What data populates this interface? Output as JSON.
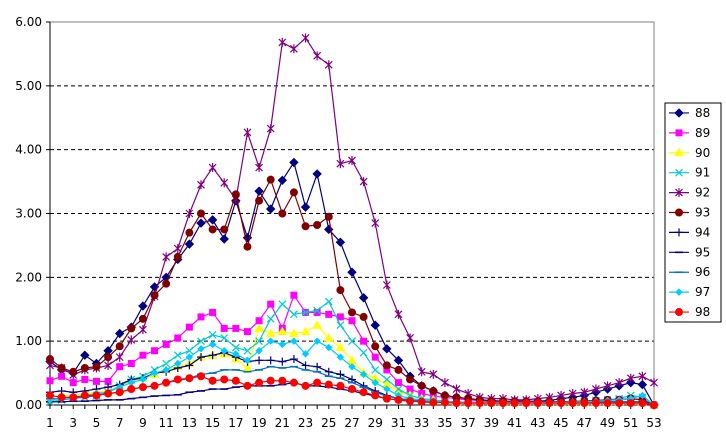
{
  "chart_data": {
    "type": "line",
    "title": "",
    "xlabel": "",
    "ylabel": "",
    "ylim": [
      0,
      6
    ],
    "yticks": [
      "0.00",
      "1.00",
      "2.00",
      "3.00",
      "4.00",
      "5.00",
      "6.00"
    ],
    "xticks": [
      "1",
      "3",
      "5",
      "7",
      "9",
      "11",
      "13",
      "15",
      "17",
      "19",
      "21",
      "23",
      "25",
      "27",
      "29",
      "31",
      "33",
      "35",
      "37",
      "39",
      "41",
      "43",
      "45",
      "47",
      "49",
      "51",
      "53"
    ],
    "x": [
      1,
      2,
      3,
      4,
      5,
      6,
      7,
      8,
      9,
      10,
      11,
      12,
      13,
      14,
      15,
      16,
      17,
      18,
      19,
      20,
      21,
      22,
      23,
      24,
      25,
      26,
      27,
      28,
      29,
      30,
      31,
      32,
      33,
      34,
      35,
      36,
      37,
      38,
      39,
      40,
      41,
      42,
      43,
      44,
      45,
      46,
      47,
      48,
      49,
      50,
      51,
      52,
      53
    ],
    "grid": "horizontal-dashed",
    "legend_position": "right",
    "series": [
      {
        "name": "88",
        "color": "#000080",
        "marker": "diamond",
        "values": [
          0.68,
          0.55,
          0.5,
          0.78,
          0.65,
          0.85,
          1.12,
          1.22,
          1.55,
          1.85,
          2.0,
          2.28,
          2.52,
          2.85,
          2.9,
          2.6,
          3.2,
          2.62,
          3.35,
          3.07,
          3.52,
          3.8,
          3.1,
          3.62,
          2.75,
          2.55,
          2.08,
          1.68,
          1.25,
          0.88,
          0.7,
          0.45,
          0.3,
          0.22,
          0.15,
          0.12,
          0.1,
          0.08,
          0.07,
          0.06,
          0.06,
          0.06,
          0.06,
          0.07,
          0.1,
          0.12,
          0.15,
          0.2,
          0.25,
          0.3,
          0.35,
          0.32,
          0.0
        ]
      },
      {
        "name": "89",
        "color": "#ff00ff",
        "marker": "square",
        "values": [
          0.38,
          0.45,
          0.35,
          0.4,
          0.37,
          0.37,
          0.6,
          0.65,
          0.78,
          0.85,
          0.95,
          1.05,
          1.22,
          1.38,
          1.45,
          1.2,
          1.2,
          1.15,
          1.32,
          1.58,
          1.2,
          1.72,
          1.45,
          1.45,
          1.42,
          1.38,
          1.32,
          1.0,
          0.75,
          0.55,
          0.35,
          0.25,
          0.18,
          0.14,
          0.12,
          0.1,
          0.08,
          0.07,
          0.06,
          0.06,
          0.05,
          0.05,
          0.05,
          0.05,
          0.05,
          0.05,
          0.06,
          0.07,
          0.08,
          0.09,
          0.1,
          0.08,
          0.0
        ]
      },
      {
        "name": "90",
        "color": "#ffff00",
        "marker": "triangle",
        "values": [
          0.12,
          0.15,
          0.15,
          0.18,
          0.2,
          0.22,
          0.3,
          0.38,
          0.42,
          0.48,
          0.55,
          0.6,
          0.65,
          0.75,
          0.78,
          0.8,
          0.72,
          0.58,
          1.2,
          1.12,
          1.15,
          1.12,
          1.15,
          1.25,
          1.05,
          0.9,
          0.7,
          0.5,
          0.42,
          0.32,
          0.22,
          0.15,
          0.1,
          0.08,
          0.06,
          0.05,
          0.04,
          0.04,
          0.04,
          0.04,
          0.04,
          0.04,
          0.04,
          0.04,
          0.04,
          0.04,
          0.04,
          0.05,
          0.05,
          0.05,
          0.06,
          0.05,
          0.0
        ]
      },
      {
        "name": "91",
        "color": "#00cccc",
        "marker": "x",
        "values": [
          0.05,
          0.08,
          0.1,
          0.12,
          0.15,
          0.2,
          0.3,
          0.4,
          0.45,
          0.55,
          0.65,
          0.78,
          0.85,
          1.0,
          1.1,
          1.05,
          0.9,
          0.85,
          1.0,
          1.35,
          1.58,
          1.42,
          1.45,
          1.48,
          1.62,
          1.25,
          1.0,
          0.82,
          0.55,
          0.4,
          0.25,
          0.15,
          0.1,
          0.08,
          0.06,
          0.05,
          0.04,
          0.04,
          0.04,
          0.04,
          0.04,
          0.04,
          0.04,
          0.04,
          0.05,
          0.05,
          0.06,
          0.07,
          0.08,
          0.1,
          0.15,
          0.12,
          0.0
        ]
      },
      {
        "name": "92",
        "color": "#800080",
        "marker": "asterisk",
        "values": [
          0.62,
          0.58,
          0.47,
          0.55,
          0.58,
          0.62,
          0.75,
          1.02,
          1.18,
          1.7,
          2.32,
          2.45,
          3.0,
          3.45,
          3.72,
          3.48,
          3.22,
          4.27,
          3.72,
          4.33,
          5.68,
          5.58,
          5.75,
          5.47,
          5.33,
          3.78,
          3.83,
          3.5,
          2.85,
          1.88,
          1.42,
          1.05,
          0.52,
          0.48,
          0.35,
          0.25,
          0.18,
          0.12,
          0.1,
          0.1,
          0.08,
          0.08,
          0.1,
          0.12,
          0.15,
          0.18,
          0.2,
          0.25,
          0.3,
          0.35,
          0.42,
          0.45,
          0.35
        ]
      },
      {
        "name": "93",
        "color": "#800000",
        "marker": "circle",
        "values": [
          0.72,
          0.58,
          0.52,
          0.58,
          0.6,
          0.75,
          0.92,
          1.2,
          1.35,
          1.72,
          1.9,
          2.32,
          2.7,
          3.0,
          2.75,
          2.75,
          3.3,
          2.48,
          3.2,
          3.53,
          3.0,
          3.33,
          2.8,
          2.82,
          2.95,
          1.8,
          1.45,
          1.38,
          0.92,
          0.62,
          0.55,
          0.4,
          0.3,
          0.22,
          0.15,
          0.12,
          0.1,
          0.08,
          0.06,
          0.06,
          0.05,
          0.05,
          0.05,
          0.05,
          0.05,
          0.06,
          0.06,
          0.07,
          0.08,
          0.08,
          0.1,
          0.08,
          0.0
        ]
      },
      {
        "name": "94",
        "color": "#000080",
        "marker": "plus",
        "values": [
          0.2,
          0.22,
          0.2,
          0.22,
          0.25,
          0.28,
          0.32,
          0.4,
          0.42,
          0.5,
          0.52,
          0.58,
          0.62,
          0.75,
          0.78,
          0.82,
          0.75,
          0.68,
          0.7,
          0.7,
          0.68,
          0.72,
          0.62,
          0.6,
          0.52,
          0.48,
          0.4,
          0.3,
          0.22,
          0.15,
          0.1,
          0.08,
          0.06,
          0.05,
          0.04,
          0.04,
          0.04,
          0.04,
          0.04,
          0.04,
          0.04,
          0.04,
          0.04,
          0.04,
          0.04,
          0.04,
          0.04,
          0.04,
          0.05,
          0.05,
          0.05,
          0.05,
          0.0
        ]
      },
      {
        "name": "95",
        "color": "#000080",
        "marker": "dash",
        "values": [
          0.05,
          0.05,
          0.06,
          0.06,
          0.07,
          0.08,
          0.08,
          0.1,
          0.12,
          0.14,
          0.15,
          0.16,
          0.2,
          0.22,
          0.25,
          0.25,
          0.28,
          0.3,
          0.3,
          0.3,
          0.32,
          0.35,
          0.3,
          0.3,
          0.28,
          0.25,
          0.22,
          0.18,
          0.14,
          0.1,
          0.08,
          0.06,
          0.05,
          0.04,
          0.04,
          0.03,
          0.03,
          0.03,
          0.03,
          0.03,
          0.03,
          0.03,
          0.03,
          0.03,
          0.03,
          0.03,
          0.03,
          0.03,
          0.03,
          0.03,
          0.03,
          0.03,
          0.0
        ]
      },
      {
        "name": "96",
        "color": "#0070c0",
        "marker": "dash",
        "values": [
          0.1,
          0.1,
          0.12,
          0.12,
          0.15,
          0.18,
          0.2,
          0.25,
          0.28,
          0.3,
          0.35,
          0.38,
          0.42,
          0.48,
          0.5,
          0.55,
          0.55,
          0.52,
          0.55,
          0.6,
          0.58,
          0.6,
          0.55,
          0.52,
          0.45,
          0.42,
          0.35,
          0.28,
          0.2,
          0.14,
          0.1,
          0.08,
          0.06,
          0.05,
          0.04,
          0.04,
          0.04,
          0.04,
          0.04,
          0.04,
          0.04,
          0.04,
          0.04,
          0.04,
          0.04,
          0.04,
          0.04,
          0.05,
          0.05,
          0.05,
          0.05,
          0.05,
          0.0
        ]
      },
      {
        "name": "97",
        "color": "#00ccff",
        "marker": "diamond-small",
        "values": [
          0.08,
          0.1,
          0.12,
          0.15,
          0.18,
          0.2,
          0.28,
          0.35,
          0.4,
          0.5,
          0.55,
          0.65,
          0.75,
          0.88,
          0.95,
          0.85,
          0.8,
          0.7,
          0.85,
          1.0,
          0.95,
          1.0,
          0.8,
          1.0,
          0.9,
          0.75,
          0.6,
          0.48,
          0.35,
          0.25,
          0.15,
          0.1,
          0.08,
          0.06,
          0.05,
          0.04,
          0.04,
          0.04,
          0.04,
          0.04,
          0.04,
          0.04,
          0.04,
          0.04,
          0.04,
          0.05,
          0.05,
          0.06,
          0.07,
          0.08,
          0.1,
          0.15,
          0.0
        ]
      },
      {
        "name": "98",
        "color": "#ff0000",
        "marker": "circle",
        "values": [
          0.15,
          0.12,
          0.12,
          0.15,
          0.15,
          0.18,
          0.2,
          0.25,
          0.28,
          0.3,
          0.35,
          0.4,
          0.42,
          0.45,
          0.38,
          0.4,
          0.38,
          0.3,
          0.35,
          0.38,
          0.38,
          0.35,
          0.3,
          0.35,
          0.32,
          0.3,
          0.25,
          0.2,
          0.15,
          0.1,
          0.08,
          0.06,
          0.05,
          0.04,
          0.04,
          0.03,
          0.03,
          0.03,
          0.03,
          0.03,
          0.03,
          0.03,
          0.03,
          0.03,
          0.03,
          0.03,
          0.03,
          0.03,
          0.03,
          0.03,
          0.03,
          0.03,
          0.0
        ]
      }
    ]
  }
}
